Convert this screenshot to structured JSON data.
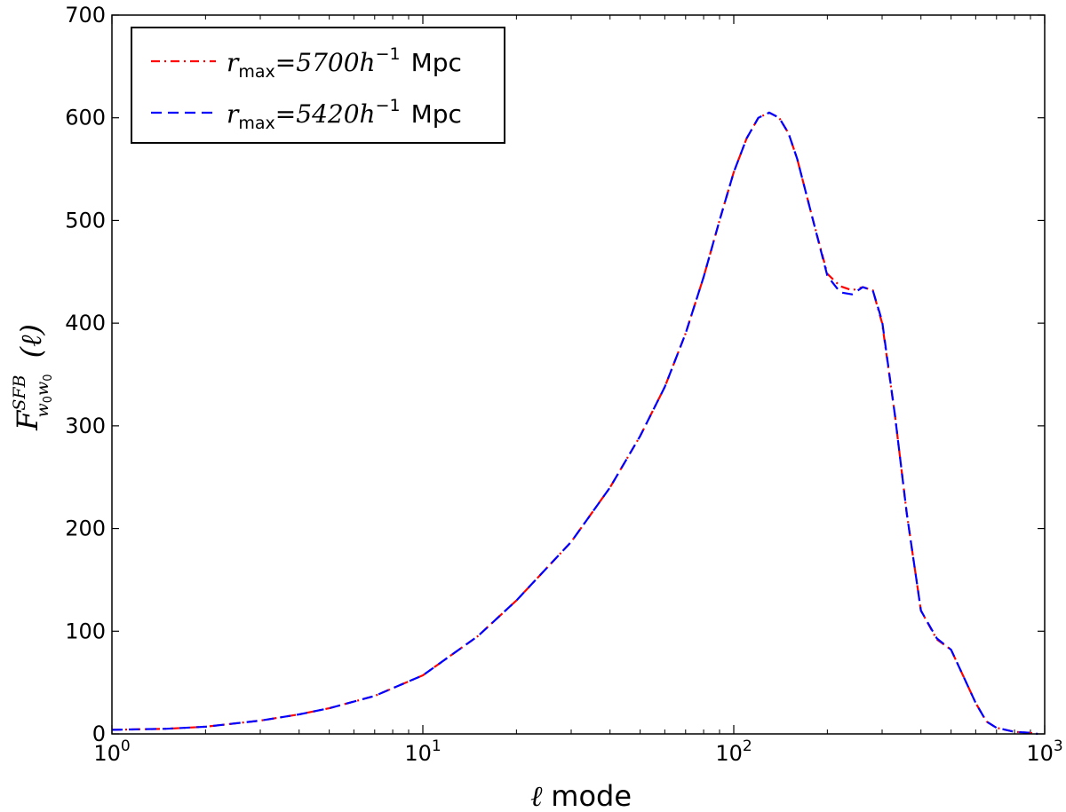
{
  "chart_data": {
    "type": "line",
    "x_scale": "log",
    "xlim": [
      1,
      1000
    ],
    "ylim": [
      0,
      700
    ],
    "xlabel": {
      "symbol": "ℓ",
      "text": "mode"
    },
    "ylabel": {
      "base": "F",
      "sup": "SFB",
      "sub": "w",
      "sub_index": "0",
      "arg": "(ℓ)"
    },
    "x_ticks": [
      {
        "value": 1,
        "base": "10",
        "exp": "0"
      },
      {
        "value": 10,
        "base": "10",
        "exp": "1"
      },
      {
        "value": 100,
        "base": "10",
        "exp": "2"
      },
      {
        "value": 1000,
        "base": "10",
        "exp": "3"
      }
    ],
    "y_ticks": [
      "0",
      "100",
      "200",
      "300",
      "400",
      "500",
      "600",
      "700"
    ],
    "grid": false,
    "legend_position": "upper-left",
    "series": [
      {
        "name_prefix": "r",
        "name_sub": "max",
        "name_value": "=5700h",
        "name_exp": "−1",
        "name_unit": "Mpc",
        "color": "#ff0000",
        "style": "dashdot",
        "x": [
          1,
          1.5,
          2,
          3,
          4,
          5,
          7,
          10,
          15,
          20,
          30,
          40,
          50,
          60,
          70,
          80,
          90,
          100,
          110,
          120,
          130,
          140,
          150,
          160,
          180,
          200,
          220,
          240,
          260,
          280,
          300,
          330,
          360,
          400,
          450,
          500,
          550,
          600,
          650,
          700,
          800,
          900,
          950
        ],
        "y": [
          4,
          5,
          7,
          13,
          19,
          25,
          37,
          57,
          95,
          130,
          187,
          240,
          290,
          338,
          390,
          445,
          500,
          547,
          580,
          600,
          605,
          600,
          585,
          560,
          500,
          448,
          436,
          432,
          435,
          432,
          400,
          310,
          215,
          120,
          92,
          82,
          55,
          30,
          12,
          6,
          2,
          1,
          0
        ]
      },
      {
        "name_prefix": "r",
        "name_sub": "max",
        "name_value": "=5420h",
        "name_exp": "−1",
        "name_unit": "Mpc",
        "color": "#0000ff",
        "style": "dashed",
        "x": [
          1,
          1.5,
          2,
          3,
          4,
          5,
          7,
          10,
          15,
          20,
          30,
          40,
          50,
          60,
          70,
          80,
          90,
          100,
          110,
          120,
          130,
          140,
          150,
          160,
          180,
          200,
          220,
          240,
          260,
          280,
          300,
          330,
          360,
          400,
          450,
          500,
          550,
          600,
          650,
          700,
          800,
          900,
          950
        ],
        "y": [
          4,
          5,
          7,
          13,
          19,
          25,
          37,
          57,
          95,
          130,
          187,
          240,
          290,
          338,
          390,
          445,
          500,
          547,
          580,
          600,
          605,
          600,
          585,
          560,
          500,
          446,
          430,
          428,
          435,
          432,
          402,
          310,
          215,
          120,
          93,
          82,
          55,
          30,
          12,
          6,
          2,
          1,
          0
        ]
      }
    ]
  }
}
